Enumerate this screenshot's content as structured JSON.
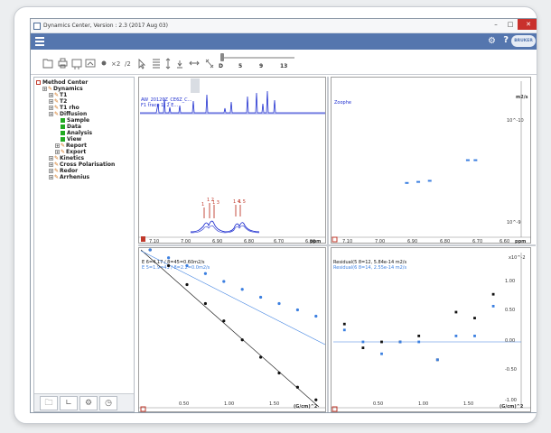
{
  "window": {
    "title": "Dynamics Center, Version : 2.3  (2017 Aug 03)",
    "minimize_glyph": "–",
    "maximize_glyph": "□",
    "close_glyph": "✕"
  },
  "appbar": {
    "menu_icon": "hamburger-icon",
    "settings_icon": "gear-icon",
    "help_label": "?",
    "logo_text": "BRUKER"
  },
  "toolbar": {
    "zoom_x2_label": "×2",
    "zoom_div2_label": "/2",
    "zoom_fit_label": "⟷",
    "slider_labels": [
      "D",
      "5",
      "9",
      "13"
    ]
  },
  "tree": {
    "root": "Method Center",
    "items": [
      {
        "label": "Dynamics",
        "level": 1,
        "icon": "pen-icon"
      },
      {
        "label": "T1",
        "level": 2,
        "icon": "pen-icon"
      },
      {
        "label": "T2",
        "level": 2,
        "icon": "pen-icon"
      },
      {
        "label": "T1 rho",
        "level": 2,
        "icon": "pen-icon"
      },
      {
        "label": "Diffusion",
        "level": 2,
        "icon": "pen-icon"
      },
      {
        "label": "Sample",
        "level": 3,
        "icon": "green-square-icon"
      },
      {
        "label": "Data",
        "level": 3,
        "icon": "green-square-icon"
      },
      {
        "label": "Analysis",
        "level": 3,
        "icon": "green-square-icon"
      },
      {
        "label": "View",
        "level": 3,
        "icon": "green-square-icon"
      },
      {
        "label": "Report",
        "level": 3,
        "icon": "pen-icon"
      },
      {
        "label": "Export",
        "level": 3,
        "icon": "pen-icon"
      },
      {
        "label": "Kinetics",
        "level": 2,
        "icon": "pen-icon"
      },
      {
        "label": "Cross Polarisation",
        "level": 2,
        "icon": "pen-icon"
      },
      {
        "label": "Redor",
        "level": 2,
        "icon": "pen-icon"
      },
      {
        "label": "Arrhenius",
        "level": 2,
        "icon": "pen-icon"
      }
    ]
  },
  "plots": {
    "top_left": {
      "dataset_line1": "AW_20120Z_CE6Z_C...",
      "dataset_line2": "F1 trace 1, 2 E...",
      "x_axis_unit": "ppm",
      "x_ticks": [
        "7.10",
        "7.00",
        "6.90",
        "6.80",
        "6.70",
        "6.60"
      ],
      "peak_labels": [
        "1",
        "1 2",
        "1 3",
        "1 4",
        "1 5"
      ]
    },
    "top_right": {
      "legend": "Zoophe",
      "y_unit": "m2/s",
      "y_ticks": [
        "10^-10",
        "10^-9"
      ],
      "x_axis_unit": "ppm",
      "x_ticks": [
        "7.10",
        "7.00",
        "6.90",
        "6.80",
        "6.70",
        "6.60"
      ]
    },
    "bottom_left": {
      "legend1": "E 6=4.17 / 8=45=0.60m2/s",
      "legend2": "E 5=1.9=43 / 8=2.2=0.0m2/s",
      "x_axis_unit": "(G/cm)^2",
      "x_ticks": [
        "0.50",
        "1.00",
        "1.50"
      ]
    },
    "bottom_right": {
      "legend1": "Residual(5 8=12, 5.84e-14 m2/s",
      "legend2": "Residual(6 8=14, 2.55e-14 m2/s",
      "y_unit": "x10^-2",
      "y_ticks": [
        "1.00",
        "0.50",
        "0.00",
        "-0.50",
        "-1.00"
      ],
      "x_axis_unit": "(G/cm)^2",
      "x_ticks": [
        "0.50",
        "1.00",
        "1.50"
      ]
    }
  },
  "colors": {
    "appbar": "#5576ae",
    "spectrum_blue": "#1f2fd0",
    "peak_label_red": "#c0392b",
    "series_black": "#111111",
    "series_blue": "#3b7fe0",
    "tree_green": "#22aa22"
  },
  "chart_data": [
    {
      "type": "line",
      "xlabel": "ppm",
      "x": [
        7.1,
        7.0,
        6.9,
        6.8,
        6.7,
        6.6
      ],
      "series": [
        {
          "values": [
            0,
            0,
            0.9,
            0.7,
            0.8,
            0
          ]
        }
      ]
    },
    {
      "type": "scatter",
      "xlabel": "ppm",
      "ylabel": "m2/s",
      "series": [
        {
          "points": [
            [
              6.9,
              4.2e-10
            ],
            [
              6.87,
              4.1e-10
            ],
            [
              6.84,
              4e-10
            ],
            [
              6.74,
              2.5e-10
            ],
            [
              6.72,
              2.5e-10
            ]
          ]
        }
      ]
    },
    {
      "type": "scatter",
      "xlabel": "(G/cm)^2",
      "series": [
        {
          "name": "E 6=4.17 / 8=45=0.60m2/s",
          "color": "#111111",
          "x": [
            0.1,
            0.3,
            0.5,
            0.7,
            0.9,
            1.1,
            1.3,
            1.5,
            1.7,
            1.9
          ],
          "values": [
            1.0,
            0.9,
            0.78,
            0.66,
            0.55,
            0.43,
            0.32,
            0.22,
            0.13,
            0.05
          ]
        },
        {
          "name": "E 5=1.9=43 / 8=2.2=0.0m2/s",
          "color": "#3b7fe0",
          "x": [
            0.1,
            0.3,
            0.5,
            0.7,
            0.9,
            1.1,
            1.3,
            1.5,
            1.7,
            1.9
          ],
          "values": [
            1.0,
            0.95,
            0.9,
            0.85,
            0.8,
            0.75,
            0.7,
            0.66,
            0.62,
            0.58
          ]
        }
      ]
    },
    {
      "type": "scatter",
      "xlabel": "(G/cm)^2",
      "ylabel": "x10^-2",
      "series": [
        {
          "name": "Residual(5 8=12, 5.84e-14 m2/s",
          "color": "#111111",
          "x": [
            0.1,
            0.3,
            0.5,
            0.7,
            0.9,
            1.1,
            1.3,
            1.5,
            1.7
          ],
          "values": [
            0.3,
            -0.1,
            0.0,
            0.0,
            0.1,
            -0.3,
            0.5,
            0.4,
            0.8
          ]
        },
        {
          "name": "Residual(6 8=14, 2.55e-14 m2/s",
          "color": "#3b7fe0",
          "x": [
            0.1,
            0.3,
            0.5,
            0.7,
            0.9,
            1.1,
            1.3,
            1.5,
            1.7
          ],
          "values": [
            0.2,
            0.0,
            -0.2,
            0.0,
            0.0,
            -0.3,
            0.1,
            0.1,
            0.6
          ]
        }
      ]
    }
  ]
}
